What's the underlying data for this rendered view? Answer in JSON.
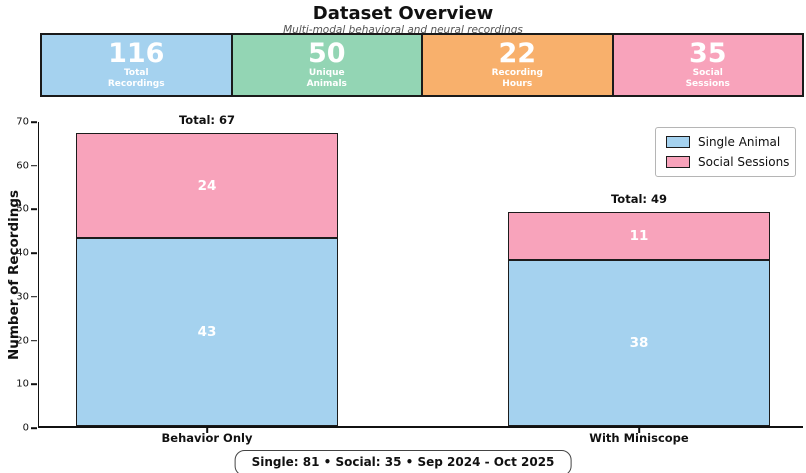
{
  "header": {
    "title": "Dataset Overview",
    "subtitle": "Multi-modal behavioral and neural recordings"
  },
  "stats": [
    {
      "value": "116",
      "label_line1": "Total",
      "label_line2": "Recordings",
      "color": "#a5d2ef"
    },
    {
      "value": "50",
      "label_line1": "Unique",
      "label_line2": "Animals",
      "color": "#93d5b4"
    },
    {
      "value": "22",
      "label_line1": "Recording",
      "label_line2": "Hours",
      "color": "#f8b06c"
    },
    {
      "value": "35",
      "label_line1": "Social",
      "label_line2": "Sessions",
      "color": "#f8a3bb"
    }
  ],
  "chart_data": {
    "type": "bar",
    "stacked": true,
    "categories": [
      "Behavior Only",
      "With Miniscope"
    ],
    "series": [
      {
        "name": "Single Animal",
        "values": [
          43,
          38
        ],
        "color": "#a5d2ef"
      },
      {
        "name": "Social Sessions",
        "values": [
          24,
          11
        ],
        "color": "#f8a3bb"
      }
    ],
    "totals": [
      67,
      49
    ],
    "total_label_prefix": "Total: ",
    "ylabel": "Number of Recordings",
    "ylim": [
      0,
      70
    ],
    "yticks": [
      0,
      10,
      20,
      30,
      40,
      50,
      60,
      70
    ],
    "grid": false,
    "legend_position": "upper right"
  },
  "footer": {
    "text": "Single: 81   •   Social: 35   •   Sep 2024 - Oct 2025"
  }
}
